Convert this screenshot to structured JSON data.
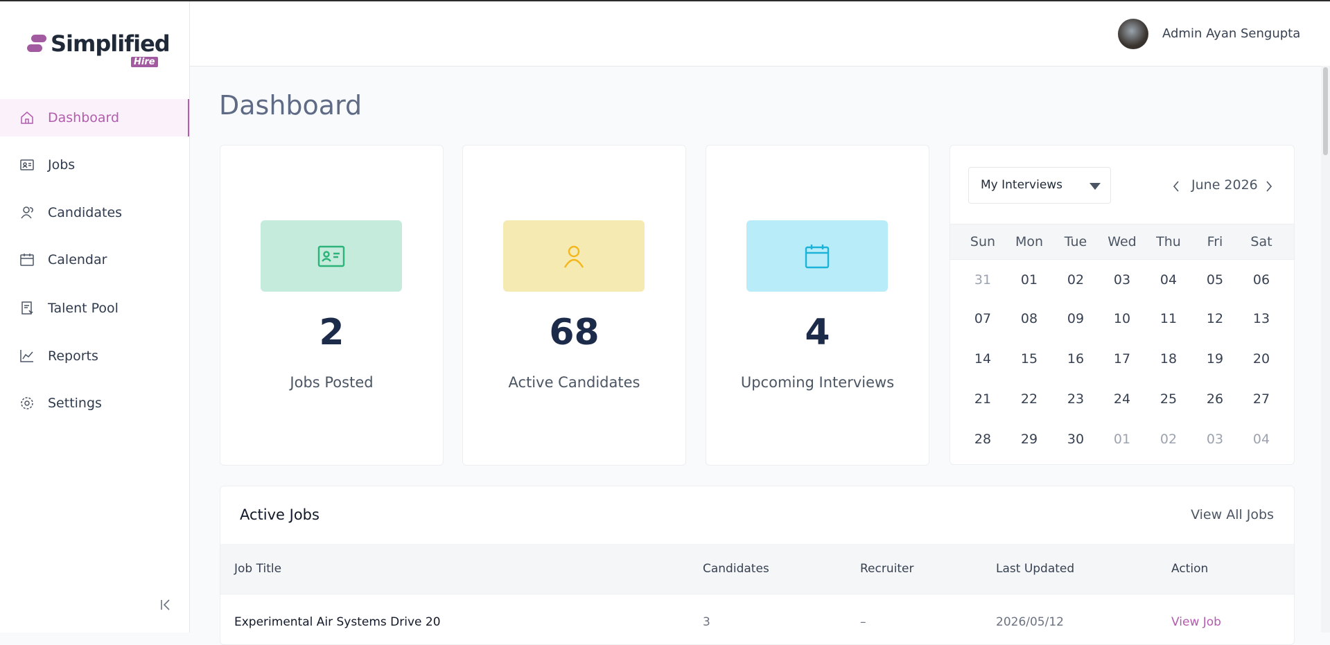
{
  "brand": {
    "name": "Simplified",
    "tag": "Hire"
  },
  "header": {
    "user": "Admin Ayan Sengupta"
  },
  "nav": [
    "Dashboard",
    "Jobs",
    "Candidates",
    "Calendar",
    "Talent Pool",
    "Reports",
    "Settings"
  ],
  "page_title": "Dashboard",
  "stats": [
    {
      "value": 2,
      "label": "Jobs Posted"
    },
    {
      "value": 68,
      "label": "Active Candidates"
    },
    {
      "value": 4,
      "label": "Upcoming Interviews"
    }
  ],
  "calendar": {
    "filter": "My Interviews",
    "month": "June 2026",
    "weekdays": [
      "Sun",
      "Mon",
      "Tue",
      "Wed",
      "Thu",
      "Fri",
      "Sat"
    ],
    "weeks": [
      [
        "31",
        "01",
        "02",
        "03",
        "04",
        "05",
        "06"
      ],
      [
        "07",
        "08",
        "09",
        "10",
        "11",
        "12",
        "13"
      ],
      [
        "14",
        "15",
        "16",
        "17",
        "18",
        "19",
        "20"
      ],
      [
        "21",
        "22",
        "23",
        "24",
        "25",
        "26",
        "27"
      ],
      [
        "28",
        "29",
        "30",
        "01",
        "02",
        "03",
        "04"
      ]
    ]
  },
  "active_jobs": {
    "title": "Active Jobs",
    "link": "View All Jobs",
    "columns": [
      "Job Title",
      "Candidates",
      "Recruiter",
      "Last Updated",
      "Action"
    ],
    "rows": [
      [
        "Experimental Air Systems Drive 20",
        3,
        "–",
        "2026/05/12",
        "View Job"
      ]
    ]
  }
}
